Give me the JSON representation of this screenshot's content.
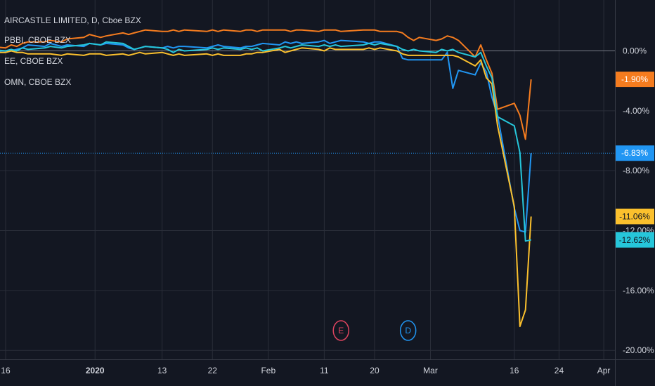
{
  "chart_data": {
    "type": "line",
    "title": "AIRCASTLE LIMITED, D, Cboe BZX",
    "legend_entries": [
      "PBBI, CBOE BZX",
      "EE, CBOE BZX",
      "OMN, CBOE BZX"
    ],
    "y_axis": {
      "unit": "%",
      "ticks": [
        0,
        -4,
        -8,
        -12,
        -16,
        -20
      ],
      "tick_labels": [
        "0.00%",
        "-4.00%",
        "-8.00%",
        "-12.00%",
        "-16.00%",
        "-20.00%"
      ],
      "ylim": [
        -20.6,
        3.4
      ]
    },
    "x_axis": {
      "tick_labels": [
        "16",
        "2020",
        "13",
        "22",
        "Feb",
        "11",
        "20",
        "Mar",
        "16",
        "24",
        "Apr"
      ],
      "tick_dates": [
        "2019-12-16",
        "2020-01-01",
        "2020-01-13",
        "2020-01-22",
        "2020-02-01",
        "2020-02-11",
        "2020-02-20",
        "2020-03-01",
        "2020-03-16",
        "2020-03-24",
        "2020-04-01"
      ],
      "xlim": [
        "2019-12-15",
        "2020-04-03"
      ]
    },
    "series": [
      {
        "name": "",
        "color": "#f57c1f",
        "last_value_label": "-1.90%",
        "points": [
          [
            "2019-12-13",
            0.3
          ],
          [
            "2019-12-16",
            0.2
          ],
          [
            "2019-12-17",
            0.4
          ],
          [
            "2019-12-18",
            0.3
          ],
          [
            "2019-12-19",
            0.5
          ],
          [
            "2019-12-20",
            0.6
          ],
          [
            "2019-12-23",
            0.6
          ],
          [
            "2019-12-24",
            0.7
          ],
          [
            "2019-12-26",
            0.6
          ],
          [
            "2019-12-27",
            0.8
          ],
          [
            "2019-12-30",
            0.9
          ],
          [
            "2019-12-31",
            1.1
          ],
          [
            "2020-01-02",
            0.9
          ],
          [
            "2020-01-03",
            1.0
          ],
          [
            "2020-01-06",
            1.2
          ],
          [
            "2020-01-07",
            1.1
          ],
          [
            "2020-01-08",
            1.2
          ],
          [
            "2020-01-09",
            1.3
          ],
          [
            "2020-01-10",
            1.4
          ],
          [
            "2020-01-13",
            1.3
          ],
          [
            "2020-01-14",
            1.3
          ],
          [
            "2020-01-15",
            1.4
          ],
          [
            "2020-01-16",
            1.3
          ],
          [
            "2020-01-17",
            1.4
          ],
          [
            "2020-01-21",
            1.3
          ],
          [
            "2020-01-22",
            1.4
          ],
          [
            "2020-01-23",
            1.3
          ],
          [
            "2020-01-24",
            1.4
          ],
          [
            "2020-01-27",
            1.3
          ],
          [
            "2020-01-28",
            1.4
          ],
          [
            "2020-01-29",
            1.4
          ],
          [
            "2020-01-30",
            1.3
          ],
          [
            "2020-01-31",
            1.4
          ],
          [
            "2020-02-03",
            1.4
          ],
          [
            "2020-02-04",
            1.4
          ],
          [
            "2020-02-05",
            1.3
          ],
          [
            "2020-02-06",
            1.4
          ],
          [
            "2020-02-07",
            1.4
          ],
          [
            "2020-02-10",
            1.3
          ],
          [
            "2020-02-11",
            1.4
          ],
          [
            "2020-02-12",
            1.4
          ],
          [
            "2020-02-13",
            1.4
          ],
          [
            "2020-02-14",
            1.3
          ],
          [
            "2020-02-18",
            1.4
          ],
          [
            "2020-02-19",
            1.4
          ],
          [
            "2020-02-20",
            1.4
          ],
          [
            "2020-02-21",
            1.3
          ],
          [
            "2020-02-24",
            1.3
          ],
          [
            "2020-02-25",
            1.2
          ],
          [
            "2020-02-26",
            0.9
          ],
          [
            "2020-02-27",
            0.7
          ],
          [
            "2020-02-28",
            0.9
          ],
          [
            "2020-03-02",
            0.7
          ],
          [
            "2020-03-03",
            0.8
          ],
          [
            "2020-03-04",
            1.0
          ],
          [
            "2020-03-05",
            0.9
          ],
          [
            "2020-03-06",
            0.7
          ],
          [
            "2020-03-09",
            -0.4
          ],
          [
            "2020-03-10",
            0.4
          ],
          [
            "2020-03-11",
            -0.6
          ],
          [
            "2020-03-12",
            -1.5
          ],
          [
            "2020-03-13",
            -3.9
          ],
          [
            "2020-03-16",
            -3.5
          ],
          [
            "2020-03-17",
            -4.3
          ],
          [
            "2020-03-18",
            -5.9
          ],
          [
            "2020-03-19",
            -1.9
          ]
        ]
      },
      {
        "name": "",
        "color": "#2196f3",
        "last_value_label": "-6.83%",
        "points": [
          [
            "2019-12-13",
            0.0
          ],
          [
            "2019-12-16",
            -0.1
          ],
          [
            "2019-12-17",
            0.0
          ],
          [
            "2019-12-18",
            0.1
          ],
          [
            "2019-12-19",
            0.2
          ],
          [
            "2019-12-20",
            0.4
          ],
          [
            "2019-12-23",
            0.3
          ],
          [
            "2019-12-24",
            0.5
          ],
          [
            "2019-12-26",
            0.3
          ],
          [
            "2019-12-27",
            0.4
          ],
          [
            "2019-12-30",
            0.3
          ],
          [
            "2019-12-31",
            0.5
          ],
          [
            "2020-01-02",
            0.4
          ],
          [
            "2020-01-03",
            0.5
          ],
          [
            "2020-01-06",
            0.4
          ],
          [
            "2020-01-07",
            0.2
          ],
          [
            "2020-01-08",
            0.1
          ],
          [
            "2020-01-09",
            0.2
          ],
          [
            "2020-01-10",
            0.3
          ],
          [
            "2020-01-13",
            0.2
          ],
          [
            "2020-01-14",
            0.3
          ],
          [
            "2020-01-15",
            0.2
          ],
          [
            "2020-01-16",
            0.3
          ],
          [
            "2020-01-17",
            0.3
          ],
          [
            "2020-01-21",
            0.2
          ],
          [
            "2020-01-22",
            0.3
          ],
          [
            "2020-01-23",
            0.4
          ],
          [
            "2020-01-24",
            0.3
          ],
          [
            "2020-01-27",
            0.2
          ],
          [
            "2020-01-28",
            0.3
          ],
          [
            "2020-01-29",
            0.3
          ],
          [
            "2020-01-30",
            0.4
          ],
          [
            "2020-01-31",
            0.5
          ],
          [
            "2020-02-03",
            0.4
          ],
          [
            "2020-02-04",
            0.6
          ],
          [
            "2020-02-05",
            0.5
          ],
          [
            "2020-02-06",
            0.6
          ],
          [
            "2020-02-07",
            0.5
          ],
          [
            "2020-02-10",
            0.6
          ],
          [
            "2020-02-11",
            0.7
          ],
          [
            "2020-02-12",
            0.5
          ],
          [
            "2020-02-13",
            0.6
          ],
          [
            "2020-02-14",
            0.7
          ],
          [
            "2020-02-18",
            0.6
          ],
          [
            "2020-02-19",
            0.5
          ],
          [
            "2020-02-20",
            0.6
          ],
          [
            "2020-02-21",
            0.6
          ],
          [
            "2020-02-24",
            0.3
          ],
          [
            "2020-02-25",
            -0.5
          ],
          [
            "2020-02-26",
            -0.6
          ],
          [
            "2020-02-27",
            -0.6
          ],
          [
            "2020-02-28",
            -0.6
          ],
          [
            "2020-03-02",
            -0.6
          ],
          [
            "2020-03-03",
            -0.6
          ],
          [
            "2020-03-04",
            -0.1
          ],
          [
            "2020-03-05",
            -2.5
          ],
          [
            "2020-03-06",
            -1.3
          ],
          [
            "2020-03-09",
            -1.6
          ],
          [
            "2020-03-10",
            -0.8
          ],
          [
            "2020-03-11",
            -1.4
          ],
          [
            "2020-03-12",
            -3.1
          ],
          [
            "2020-03-13",
            -4.3
          ],
          [
            "2020-03-16",
            -10.5
          ],
          [
            "2020-03-17",
            -12.0
          ],
          [
            "2020-03-18",
            -12.1
          ],
          [
            "2020-03-19",
            -6.83
          ]
        ]
      },
      {
        "name": "",
        "color": "#fbc02d",
        "last_value_label": "-11.06%",
        "points": [
          [
            "2019-12-13",
            -0.1
          ],
          [
            "2019-12-16",
            -0.1
          ],
          [
            "2019-12-17",
            0.0
          ],
          [
            "2019-12-18",
            -0.1
          ],
          [
            "2019-12-19",
            -0.1
          ],
          [
            "2019-12-20",
            -0.2
          ],
          [
            "2019-12-23",
            -0.2
          ],
          [
            "2019-12-24",
            -0.2
          ],
          [
            "2019-12-26",
            -0.3
          ],
          [
            "2019-12-27",
            -0.2
          ],
          [
            "2019-12-30",
            -0.3
          ],
          [
            "2019-12-31",
            -0.2
          ],
          [
            "2020-01-02",
            -0.2
          ],
          [
            "2020-01-03",
            -0.3
          ],
          [
            "2020-01-06",
            -0.2
          ],
          [
            "2020-01-07",
            -0.3
          ],
          [
            "2020-01-08",
            -0.2
          ],
          [
            "2020-01-09",
            -0.1
          ],
          [
            "2020-01-10",
            -0.2
          ],
          [
            "2020-01-13",
            -0.1
          ],
          [
            "2020-01-14",
            -0.2
          ],
          [
            "2020-01-15",
            -0.3
          ],
          [
            "2020-01-16",
            -0.2
          ],
          [
            "2020-01-17",
            -0.3
          ],
          [
            "2020-01-21",
            -0.2
          ],
          [
            "2020-01-22",
            -0.3
          ],
          [
            "2020-01-23",
            -0.2
          ],
          [
            "2020-01-24",
            -0.3
          ],
          [
            "2020-01-27",
            -0.3
          ],
          [
            "2020-01-28",
            -0.2
          ],
          [
            "2020-01-29",
            -0.2
          ],
          [
            "2020-01-30",
            -0.1
          ],
          [
            "2020-01-31",
            -0.1
          ],
          [
            "2020-02-03",
            0.1
          ],
          [
            "2020-02-04",
            -0.1
          ],
          [
            "2020-02-05",
            0.0
          ],
          [
            "2020-02-06",
            0.1
          ],
          [
            "2020-02-07",
            0.2
          ],
          [
            "2020-02-10",
            0.1
          ],
          [
            "2020-02-11",
            0.0
          ],
          [
            "2020-02-12",
            0.2
          ],
          [
            "2020-02-13",
            0.1
          ],
          [
            "2020-02-14",
            0.1
          ],
          [
            "2020-02-18",
            0.1
          ],
          [
            "2020-02-19",
            0.2
          ],
          [
            "2020-02-20",
            0.1
          ],
          [
            "2020-02-21",
            0.2
          ],
          [
            "2020-02-24",
            0.0
          ],
          [
            "2020-02-25",
            -0.2
          ],
          [
            "2020-02-26",
            -0.3
          ],
          [
            "2020-02-27",
            -0.3
          ],
          [
            "2020-02-28",
            -0.3
          ],
          [
            "2020-03-02",
            -0.3
          ],
          [
            "2020-03-03",
            -0.3
          ],
          [
            "2020-03-04",
            -0.3
          ],
          [
            "2020-03-05",
            -0.3
          ],
          [
            "2020-03-06",
            -0.4
          ],
          [
            "2020-03-09",
            -1.0
          ],
          [
            "2020-03-10",
            -0.6
          ],
          [
            "2020-03-11",
            -1.8
          ],
          [
            "2020-03-12",
            -2.2
          ],
          [
            "2020-03-13",
            -5.0
          ],
          [
            "2020-03-16",
            -10.4
          ],
          [
            "2020-03-17",
            -18.4
          ],
          [
            "2020-03-18",
            -17.3
          ],
          [
            "2020-03-19",
            -11.06
          ]
        ]
      },
      {
        "name": "",
        "color": "#26c6da",
        "last_value_label": "-12.62%",
        "points": [
          [
            "2019-12-13",
            0.1
          ],
          [
            "2019-12-16",
            0.0
          ],
          [
            "2019-12-17",
            0.1
          ],
          [
            "2019-12-18",
            0.0
          ],
          [
            "2019-12-19",
            0.2
          ],
          [
            "2019-12-20",
            0.1
          ],
          [
            "2019-12-23",
            0.2
          ],
          [
            "2019-12-24",
            0.3
          ],
          [
            "2019-12-26",
            0.2
          ],
          [
            "2019-12-27",
            0.3
          ],
          [
            "2019-12-30",
            0.4
          ],
          [
            "2019-12-31",
            0.5
          ],
          [
            "2020-01-02",
            0.4
          ],
          [
            "2020-01-03",
            0.6
          ],
          [
            "2020-01-06",
            0.5
          ],
          [
            "2020-01-07",
            0.3
          ],
          [
            "2020-01-08",
            0.1
          ],
          [
            "2020-01-09",
            0.2
          ],
          [
            "2020-01-10",
            0.3
          ],
          [
            "2020-01-13",
            0.2
          ],
          [
            "2020-01-14",
            0.1
          ],
          [
            "2020-01-15",
            -0.1
          ],
          [
            "2020-01-16",
            0.1
          ],
          [
            "2020-01-17",
            0.0
          ],
          [
            "2020-01-21",
            0.1
          ],
          [
            "2020-01-22",
            0.2
          ],
          [
            "2020-01-23",
            0.1
          ],
          [
            "2020-01-24",
            0.2
          ],
          [
            "2020-01-27",
            0.1
          ],
          [
            "2020-01-28",
            0.2
          ],
          [
            "2020-01-29",
            0.1
          ],
          [
            "2020-01-30",
            0.2
          ],
          [
            "2020-01-31",
            0.0
          ],
          [
            "2020-02-03",
            0.2
          ],
          [
            "2020-02-04",
            0.3
          ],
          [
            "2020-02-05",
            0.2
          ],
          [
            "2020-02-06",
            0.3
          ],
          [
            "2020-02-07",
            0.4
          ],
          [
            "2020-02-10",
            0.3
          ],
          [
            "2020-02-11",
            0.4
          ],
          [
            "2020-02-12",
            0.3
          ],
          [
            "2020-02-13",
            0.4
          ],
          [
            "2020-02-14",
            0.3
          ],
          [
            "2020-02-18",
            0.4
          ],
          [
            "2020-02-19",
            0.5
          ],
          [
            "2020-02-20",
            0.4
          ],
          [
            "2020-02-21",
            0.5
          ],
          [
            "2020-02-24",
            0.3
          ],
          [
            "2020-02-25",
            0.1
          ],
          [
            "2020-02-26",
            0.0
          ],
          [
            "2020-02-27",
            0.1
          ],
          [
            "2020-02-28",
            0.0
          ],
          [
            "2020-03-02",
            -0.1
          ],
          [
            "2020-03-03",
            0.1
          ],
          [
            "2020-03-04",
            0.0
          ],
          [
            "2020-03-05",
            0.1
          ],
          [
            "2020-03-06",
            -0.1
          ],
          [
            "2020-03-09",
            -0.4
          ],
          [
            "2020-03-10",
            -0.1
          ],
          [
            "2020-03-11",
            -1.0
          ],
          [
            "2020-03-12",
            -1.8
          ],
          [
            "2020-03-13",
            -4.4
          ],
          [
            "2020-03-16",
            -5.0
          ],
          [
            "2020-03-17",
            -6.8
          ],
          [
            "2020-03-18",
            -12.7
          ],
          [
            "2020-03-19",
            -12.62
          ]
        ]
      }
    ],
    "last_price_line": {
      "value": -6.83,
      "color": "#2196f3"
    },
    "event_markers": [
      {
        "label": "E",
        "date": "2020-02-14",
        "color": "#e0445f"
      },
      {
        "label": "D",
        "date": "2020-02-26",
        "color": "#2196f3"
      }
    ],
    "grid": true,
    "legend_position": "top-left"
  },
  "colors": {
    "background": "#131722",
    "grid": "#2a2e39",
    "zero_line": "#787b86",
    "text": "#d1d4dc"
  }
}
